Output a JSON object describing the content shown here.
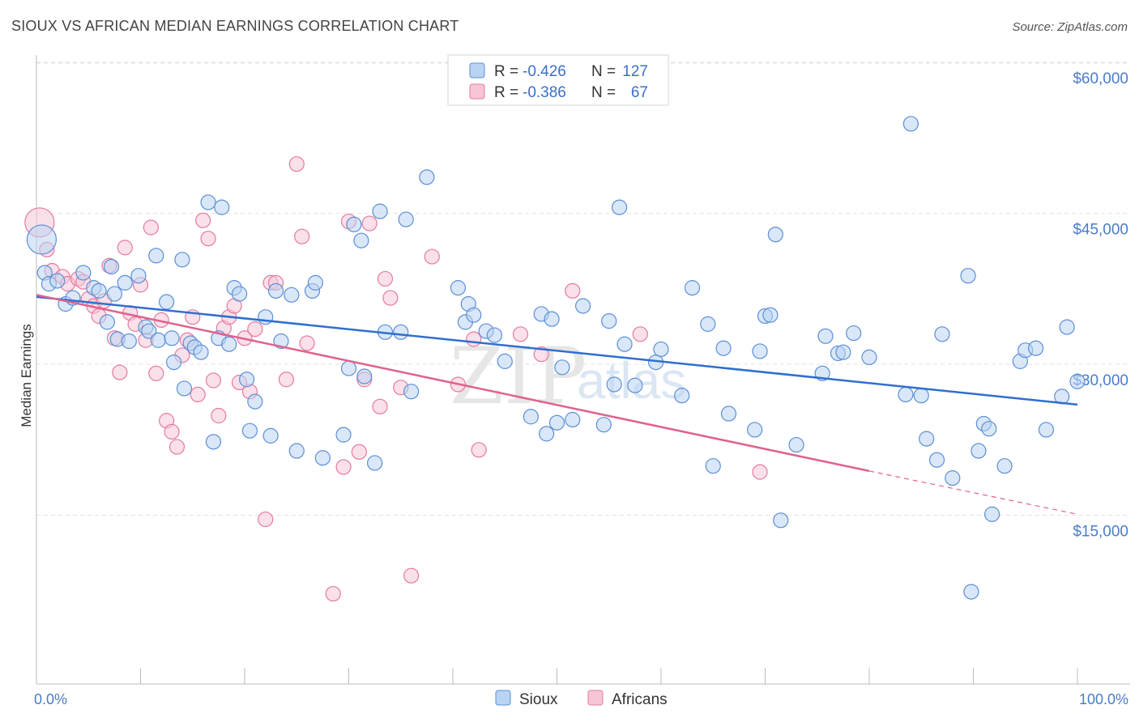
{
  "title": "SIOUX VS AFRICAN MEDIAN EARNINGS CORRELATION CHART",
  "source": "Source: ZipAtlas.com",
  "watermark": {
    "zip": "ZIP",
    "atlas": "atlas"
  },
  "colors": {
    "sioux": "#5b8fd6",
    "sioux_fill": "#b9d3f3",
    "africans": "#e57aa0",
    "africans_fill": "#f6c6d6",
    "sioux_line": "#2f6fce",
    "africans_line": "#e0628e"
  },
  "legend": {
    "rows": [
      {
        "r_label": "R = ",
        "r_value": "-0.426",
        "n_label": "N = ",
        "n_value": "127"
      },
      {
        "r_label": "R = ",
        "r_value": "-0.386",
        "n_label": "N = ",
        "n_value": "67"
      }
    ]
  },
  "bottom_legend": [
    "Sioux",
    "Africans"
  ],
  "chart_data": {
    "type": "scatter",
    "title": "SIOUX VS AFRICAN MEDIAN EARNINGS CORRELATION CHART",
    "xlabel": "",
    "ylabel": "Median Earnings",
    "xlim": [
      0,
      100
    ],
    "ylim": [
      0,
      61500
    ],
    "x_tick_labels": [
      "0.0%",
      "100.0%"
    ],
    "y_ticks": [
      15000,
      30000,
      45000,
      60000
    ],
    "y_tick_labels": [
      "$15,000",
      "$30,000",
      "$45,000",
      "$60,000"
    ],
    "grid": true,
    "legend_position": "top-center",
    "series": [
      {
        "name": "Sioux",
        "trend": {
          "x": [
            0,
            100
          ],
          "y": [
            38300,
            27600
          ]
        },
        "points": [
          [
            0.5,
            44000
          ],
          [
            0.8,
            40700
          ],
          [
            1.2,
            39600
          ],
          [
            2.0,
            39900
          ],
          [
            2.8,
            37600
          ],
          [
            3.5,
            38200
          ],
          [
            4.5,
            40700
          ],
          [
            5.5,
            39200
          ],
          [
            6.0,
            38900
          ],
          [
            6.8,
            35800
          ],
          [
            7.2,
            41300
          ],
          [
            7.5,
            38600
          ],
          [
            7.8,
            34100
          ],
          [
            8.5,
            39700
          ],
          [
            8.9,
            33900
          ],
          [
            9.8,
            40400
          ],
          [
            10.5,
            35300
          ],
          [
            10.8,
            34900
          ],
          [
            11.5,
            42400
          ],
          [
            11.7,
            34000
          ],
          [
            12.5,
            37800
          ],
          [
            13.0,
            34200
          ],
          [
            13.2,
            31800
          ],
          [
            14.0,
            42000
          ],
          [
            14.2,
            29200
          ],
          [
            14.8,
            33700
          ],
          [
            15.2,
            33300
          ],
          [
            15.8,
            32800
          ],
          [
            16.5,
            47700
          ],
          [
            17.0,
            23900
          ],
          [
            17.5,
            34200
          ],
          [
            17.8,
            47200
          ],
          [
            18.5,
            33600
          ],
          [
            19.0,
            39200
          ],
          [
            19.5,
            38600
          ],
          [
            20.2,
            30100
          ],
          [
            20.5,
            25000
          ],
          [
            21.0,
            27900
          ],
          [
            22.0,
            36300
          ],
          [
            22.5,
            24500
          ],
          [
            23.0,
            38900
          ],
          [
            23.5,
            33900
          ],
          [
            24.5,
            38500
          ],
          [
            25.0,
            23000
          ],
          [
            26.5,
            38900
          ],
          [
            26.8,
            39700
          ],
          [
            27.5,
            22300
          ],
          [
            29.5,
            24600
          ],
          [
            30.0,
            31200
          ],
          [
            30.5,
            45500
          ],
          [
            31.2,
            43900
          ],
          [
            31.5,
            30400
          ],
          [
            32.5,
            21800
          ],
          [
            33.0,
            46800
          ],
          [
            33.5,
            34800
          ],
          [
            35.0,
            34800
          ],
          [
            35.5,
            46000
          ],
          [
            36.0,
            28900
          ],
          [
            37.5,
            50200
          ],
          [
            40.5,
            39200
          ],
          [
            41.2,
            35800
          ],
          [
            41.5,
            37600
          ],
          [
            42.0,
            36500
          ],
          [
            43.2,
            34900
          ],
          [
            44.0,
            34500
          ],
          [
            45.0,
            31900
          ],
          [
            47.5,
            26400
          ],
          [
            48.5,
            36600
          ],
          [
            49.0,
            24700
          ],
          [
            49.5,
            36100
          ],
          [
            50.0,
            25800
          ],
          [
            50.5,
            31300
          ],
          [
            51.5,
            26100
          ],
          [
            52.5,
            37400
          ],
          [
            54.5,
            25600
          ],
          [
            55.0,
            35900
          ],
          [
            55.5,
            29600
          ],
          [
            56.0,
            47200
          ],
          [
            56.5,
            33600
          ],
          [
            57.5,
            29500
          ],
          [
            59.5,
            31800
          ],
          [
            60.0,
            33100
          ],
          [
            62.0,
            28500
          ],
          [
            63.0,
            39200
          ],
          [
            64.5,
            35600
          ],
          [
            65.0,
            21500
          ],
          [
            66.0,
            33200
          ],
          [
            66.5,
            26700
          ],
          [
            69.0,
            25100
          ],
          [
            69.5,
            32900
          ],
          [
            70.0,
            36400
          ],
          [
            70.5,
            36500
          ],
          [
            71.0,
            44500
          ],
          [
            71.5,
            16100
          ],
          [
            73.0,
            23600
          ],
          [
            75.5,
            30700
          ],
          [
            75.8,
            34400
          ],
          [
            77.0,
            32700
          ],
          [
            77.5,
            32800
          ],
          [
            78.5,
            34700
          ],
          [
            80.0,
            32300
          ],
          [
            83.5,
            28600
          ],
          [
            84.0,
            55500
          ],
          [
            85.0,
            28500
          ],
          [
            85.5,
            24200
          ],
          [
            86.5,
            22100
          ],
          [
            87.0,
            34600
          ],
          [
            88.0,
            20300
          ],
          [
            89.5,
            40400
          ],
          [
            89.8,
            9000
          ],
          [
            90.5,
            23000
          ],
          [
            91.0,
            25700
          ],
          [
            91.5,
            25200
          ],
          [
            91.8,
            16700
          ],
          [
            93.0,
            21500
          ],
          [
            94.5,
            31900
          ],
          [
            95.0,
            33000
          ],
          [
            96.0,
            33200
          ],
          [
            97.0,
            25100
          ],
          [
            98.5,
            28400
          ],
          [
            99.0,
            35300
          ],
          [
            100.0,
            29900
          ]
        ]
      },
      {
        "name": "Africans",
        "trend": {
          "x": [
            0,
            80
          ],
          "y": [
            38500,
            21000
          ],
          "dashed_extension": {
            "x": [
              80,
              100
            ],
            "y": [
              21000,
              16700
            ]
          }
        },
        "points": [
          [
            0.3,
            45700
          ],
          [
            1.0,
            43000
          ],
          [
            1.5,
            40900
          ],
          [
            2.5,
            40300
          ],
          [
            3.0,
            39600
          ],
          [
            4.0,
            40100
          ],
          [
            4.5,
            39800
          ],
          [
            5.0,
            38100
          ],
          [
            5.5,
            37400
          ],
          [
            6.0,
            36400
          ],
          [
            6.5,
            37900
          ],
          [
            7.0,
            41400
          ],
          [
            7.5,
            34200
          ],
          [
            8.0,
            30800
          ],
          [
            8.5,
            43200
          ],
          [
            9.0,
            36700
          ],
          [
            9.5,
            35600
          ],
          [
            10.0,
            39500
          ],
          [
            10.5,
            34000
          ],
          [
            11.0,
            45200
          ],
          [
            11.5,
            30700
          ],
          [
            12.0,
            36000
          ],
          [
            12.5,
            26000
          ],
          [
            13.0,
            24900
          ],
          [
            13.5,
            23400
          ],
          [
            14.0,
            32500
          ],
          [
            14.5,
            34000
          ],
          [
            15.0,
            36300
          ],
          [
            15.5,
            28600
          ],
          [
            16.0,
            45900
          ],
          [
            16.5,
            44100
          ],
          [
            17.0,
            30000
          ],
          [
            17.5,
            26500
          ],
          [
            18.0,
            35200
          ],
          [
            18.5,
            36300
          ],
          [
            19.0,
            37400
          ],
          [
            19.5,
            29800
          ],
          [
            20.0,
            34200
          ],
          [
            20.5,
            28900
          ],
          [
            21.0,
            35100
          ],
          [
            22.0,
            16200
          ],
          [
            22.5,
            39700
          ],
          [
            23.0,
            39700
          ],
          [
            24.0,
            30100
          ],
          [
            25.0,
            51500
          ],
          [
            25.5,
            44300
          ],
          [
            26.0,
            33700
          ],
          [
            28.5,
            8800
          ],
          [
            29.5,
            21400
          ],
          [
            30.0,
            45800
          ],
          [
            31.0,
            22900
          ],
          [
            31.5,
            30100
          ],
          [
            32.0,
            45600
          ],
          [
            33.0,
            27400
          ],
          [
            33.5,
            40100
          ],
          [
            34.0,
            38200
          ],
          [
            35.0,
            29300
          ],
          [
            36.0,
            10600
          ],
          [
            38.0,
            42300
          ],
          [
            40.5,
            29600
          ],
          [
            42.0,
            34100
          ],
          [
            42.5,
            23100
          ],
          [
            46.5,
            34600
          ],
          [
            48.5,
            32600
          ],
          [
            51.5,
            38900
          ],
          [
            58.0,
            34600
          ],
          [
            69.5,
            20900
          ]
        ]
      }
    ]
  }
}
